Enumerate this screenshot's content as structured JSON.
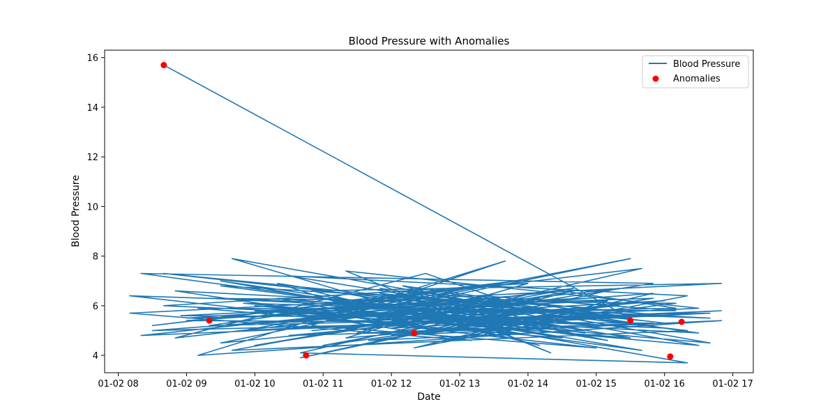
{
  "chart_data": {
    "type": "line",
    "title": "Blood Pressure with Anomalies",
    "xlabel": "Date",
    "ylabel": "Blood Pressure",
    "xlim": [
      "01-02 07:48",
      "01-02 17:18"
    ],
    "ylim": [
      3.3,
      16.3
    ],
    "x_ticks": [
      "01-02 08",
      "01-02 09",
      "01-02 10",
      "01-02 11",
      "01-02 12",
      "01-02 13",
      "01-02 14",
      "01-02 15",
      "01-02 16",
      "01-02 17"
    ],
    "y_ticks": [
      4,
      6,
      8,
      10,
      12,
      14,
      16
    ],
    "grid": false,
    "legend": {
      "position": "top-right",
      "entries": [
        "Blood Pressure",
        "Anomalies"
      ]
    },
    "colors": {
      "line": "#1f77b4",
      "anomaly": "#ff0000"
    },
    "series": [
      {
        "name": "Blood Pressure",
        "kind": "line",
        "points": [
          [
            "01-02 08:40",
            15.7
          ],
          [
            "01-02 15:30",
            5.5
          ],
          [
            "01-02 08:55",
            5.6
          ],
          [
            "01-02 14:10",
            6.3
          ],
          [
            "01-02 10:40",
            4.1
          ],
          [
            "01-02 16:20",
            3.7
          ],
          [
            "01-02 09:30",
            7.0
          ],
          [
            "01-02 13:10",
            5.5
          ],
          [
            "01-02 08:20",
            7.3
          ],
          [
            "01-02 15:50",
            6.9
          ],
          [
            "01-02 10:00",
            4.4
          ],
          [
            "01-02 14:40",
            6.6
          ],
          [
            "01-02 12:00",
            4.8
          ],
          [
            "01-02 16:50",
            5.4
          ],
          [
            "01-02 09:10",
            4.0
          ],
          [
            "01-02 13:40",
            7.8
          ],
          [
            "01-02 10:50",
            5.2
          ],
          [
            "01-02 15:00",
            4.3
          ],
          [
            "01-02 08:10",
            6.4
          ],
          [
            "01-02 12:40",
            6.0
          ],
          [
            "01-02 14:20",
            4.1
          ],
          [
            "01-02 11:20",
            7.4
          ],
          [
            "01-02 16:30",
            5.9
          ],
          [
            "01-02 09:50",
            5.0
          ],
          [
            "01-02 13:20",
            6.8
          ],
          [
            "01-02 08:30",
            5.2
          ],
          [
            "01-02 15:40",
            7.5
          ],
          [
            "01-02 12:10",
            5.3
          ],
          [
            "01-02 10:20",
            6.9
          ],
          [
            "01-02 14:50",
            5.0
          ],
          [
            "01-02 11:40",
            4.6
          ],
          [
            "01-02 16:10",
            6.1
          ],
          [
            "01-02 09:20",
            6.3
          ],
          [
            "01-02 13:50",
            5.7
          ],
          [
            "01-02 10:40",
            3.9
          ],
          [
            "01-02 15:20",
            6.7
          ],
          [
            "01-02 08:50",
            4.7
          ],
          [
            "01-02 12:30",
            7.3
          ],
          [
            "01-02 14:30",
            5.4
          ],
          [
            "01-02 11:10",
            5.8
          ],
          [
            "01-02 16:40",
            4.5
          ],
          [
            "01-02 09:40",
            7.9
          ],
          [
            "01-02 13:30",
            4.8
          ],
          [
            "01-02 15:10",
            6.2
          ],
          [
            "01-02 10:10",
            5.6
          ],
          [
            "01-02 12:50",
            6.5
          ],
          [
            "01-02 16:00",
            5.1
          ],
          [
            "01-02 08:40",
            6.0
          ],
          [
            "01-02 14:00",
            6.9
          ],
          [
            "01-02 11:30",
            4.9
          ],
          [
            "01-02 15:50",
            5.3
          ],
          [
            "01-02 09:00",
            5.4
          ],
          [
            "01-02 13:00",
            6.1
          ],
          [
            "01-02 10:30",
            7.2
          ],
          [
            "01-02 16:20",
            6.4
          ],
          [
            "01-02 12:20",
            4.3
          ],
          [
            "01-02 14:40",
            5.9
          ],
          [
            "01-02 09:30",
            4.5
          ],
          [
            "01-02 15:30",
            7.9
          ],
          [
            "01-02 11:00",
            5.5
          ],
          [
            "01-02 13:10",
            4.6
          ],
          [
            "01-02 08:10",
            5.7
          ],
          [
            "01-02 16:50",
            6.9
          ],
          [
            "01-02 10:50",
            6.6
          ],
          [
            "01-02 14:10",
            4.4
          ],
          [
            "01-02 12:00",
            5.9
          ],
          [
            "01-02 15:00",
            5.7
          ],
          [
            "01-02 09:50",
            6.1
          ],
          [
            "01-02 13:40",
            5.2
          ],
          [
            "01-02 11:50",
            6.7
          ],
          [
            "01-02 16:30",
            4.9
          ],
          [
            "01-02 10:00",
            5.8
          ],
          [
            "01-02 14:50",
            6.3
          ],
          [
            "01-02 08:30",
            5.0
          ],
          [
            "01-02 12:40",
            5.3
          ],
          [
            "01-02 15:40",
            4.2
          ],
          [
            "01-02 11:20",
            6.2
          ],
          [
            "01-02 13:50",
            7.0
          ],
          [
            "01-02 09:20",
            5.2
          ],
          [
            "01-02 16:00",
            5.6
          ],
          [
            "01-02 12:10",
            6.6
          ],
          [
            "01-02 14:20",
            5.1
          ],
          [
            "01-02 10:30",
            4.8
          ],
          [
            "01-02 15:20",
            6.0
          ],
          [
            "01-02 11:40",
            5.4
          ],
          [
            "01-02 13:20",
            6.4
          ],
          [
            "01-02 16:10",
            5.8
          ],
          [
            "01-02 09:10",
            5.9
          ],
          [
            "01-02 14:30",
            4.7
          ],
          [
            "01-02 12:30",
            5.6
          ],
          [
            "01-02 15:10",
            5.2
          ],
          [
            "01-02 10:20",
            6.3
          ],
          [
            "01-02 13:00",
            4.9
          ],
          [
            "01-02 08:50",
            6.6
          ],
          [
            "01-02 16:40",
            5.5
          ],
          [
            "01-02 11:10",
            6.0
          ],
          [
            "01-02 14:00",
            5.3
          ],
          [
            "01-02 12:50",
            4.6
          ],
          [
            "01-02 15:50",
            6.5
          ],
          [
            "01-02 10:10",
            5.3
          ],
          [
            "01-02 13:30",
            5.9
          ],
          [
            "01-02 16:20",
            5.0
          ],
          [
            "01-02 09:40",
            4.2
          ],
          [
            "01-02 14:40",
            6.7
          ],
          [
            "01-02 11:30",
            5.6
          ],
          [
            "01-02 12:20",
            6.2
          ],
          [
            "01-02 15:30",
            4.7
          ],
          [
            "01-02 10:40",
            5.7
          ],
          [
            "01-02 13:50",
            6.4
          ],
          [
            "01-02 08:20",
            4.8
          ],
          [
            "01-02 16:50",
            5.8
          ],
          [
            "01-02 12:00",
            5.1
          ],
          [
            "01-02 14:10",
            6.0
          ],
          [
            "01-02 11:00",
            4.4
          ],
          [
            "01-02 15:00",
            5.9
          ],
          [
            "01-02 09:30",
            6.8
          ],
          [
            "01-02 13:10",
            5.5
          ],
          [
            "01-02 10:50",
            5.0
          ],
          [
            "01-02 16:00",
            6.2
          ],
          [
            "01-02 12:40",
            5.7
          ],
          [
            "01-02 14:50",
            4.9
          ],
          [
            "01-02 11:50",
            6.5
          ],
          [
            "01-02 15:40",
            5.4
          ],
          [
            "01-02 08:40",
            7.3
          ],
          [
            "01-02 13:40",
            5.8
          ],
          [
            "01-02 16:30",
            4.4
          ],
          [
            "01-02 10:00",
            6.0
          ],
          [
            "01-02 14:20",
            5.2
          ],
          [
            "01-02 12:10",
            6.8
          ],
          [
            "01-02 15:20",
            5.6
          ],
          [
            "01-02 11:20",
            4.7
          ],
          [
            "01-02 13:20",
            6.3
          ],
          [
            "01-02 09:00",
            5.5
          ],
          [
            "01-02 16:10",
            5.9
          ],
          [
            "01-02 14:30",
            6.6
          ],
          [
            "01-02 10:30",
            5.4
          ],
          [
            "01-02 12:50",
            5.9
          ],
          [
            "01-02 15:10",
            4.6
          ],
          [
            "01-02 11:40",
            6.1
          ],
          [
            "01-02 13:00",
            5.2
          ],
          [
            "01-02 16:40",
            5.7
          ],
          [
            "01-02 09:50",
            5.3
          ],
          [
            "01-02 14:00",
            5.9
          ],
          [
            "01-02 12:30",
            4.9
          ],
          [
            "01-02 15:50",
            6.3
          ],
          [
            "01-02 10:20",
            5.8
          ],
          [
            "01-02 13:30",
            6.1
          ],
          [
            "01-02 16:00",
            5.3
          ]
        ]
      },
      {
        "name": "Anomalies",
        "kind": "scatter",
        "points": [
          [
            "01-02 08:40",
            15.7
          ],
          [
            "01-02 10:45",
            4.0
          ],
          [
            "01-02 16:05",
            3.95
          ],
          [
            "01-02 12:20",
            4.9
          ],
          [
            "01-02 15:30",
            5.4
          ],
          [
            "01-02 16:15",
            5.35
          ],
          [
            "01-02 09:20",
            5.4
          ]
        ]
      }
    ]
  }
}
